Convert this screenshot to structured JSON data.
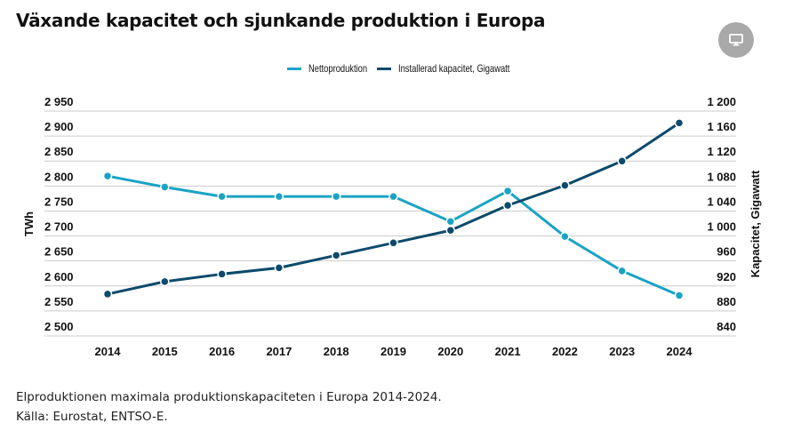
{
  "header": {
    "title": "Växande kapacitet och sjunkande produktion i Europa",
    "screen_button_icon": "monitor-icon"
  },
  "colors": {
    "netto": "#1aa3c4",
    "capacity": "#0b4a6b",
    "grid": "#cccccc",
    "button_bg": "#a9a9a9"
  },
  "chart_data": {
    "type": "line",
    "title": "Växande kapacitet och sjunkande produktion i Europa",
    "x": [
      "2014",
      "2015",
      "2016",
      "2017",
      "2018",
      "2019",
      "2020",
      "2021",
      "2022",
      "2023",
      "2024"
    ],
    "series": [
      {
        "name": "Nettoproduktion",
        "axis": "left",
        "values": [
          2820,
          2798,
          2779,
          2779,
          2779,
          2779,
          2729,
          2790,
          2699,
          2630,
          2581
        ]
      },
      {
        "name": "Installerad kapacitet, Gigawatt",
        "axis": "right",
        "values": [
          907,
          927,
          939,
          949,
          969,
          989,
          1009,
          1049,
          1081,
          1120,
          1181
        ]
      }
    ],
    "ylabel": "TWh",
    "ylabel_right": "Kapacitet, Gigawatt",
    "xlabel": "",
    "ylim": [
      2500,
      2950
    ],
    "ylim_right": [
      840,
      1200
    ],
    "yticks": [
      "2 500",
      "2 550",
      "2 600",
      "2 650",
      "2 700",
      "2 750",
      "2 800",
      "2 850",
      "2 900",
      "2 950"
    ],
    "yticks_right": [
      "840",
      "880",
      "920",
      "960",
      "1 000",
      "1 040",
      "1 080",
      "1 120",
      "1 160",
      "1 200"
    ],
    "grid": true,
    "legend_position": "top-center"
  },
  "caption": {
    "line1": "Elproduktionen maximala produktionskapaciteten i Europa 2014-2024.",
    "line2": "Källa: Eurostat, ENTSO-E."
  }
}
